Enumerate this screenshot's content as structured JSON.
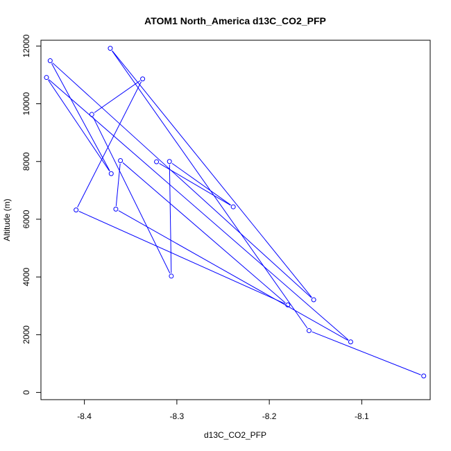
{
  "chart_data": {
    "type": "line",
    "title": "ATOM1 North_America d13C_CO2_PFP",
    "xlabel": "d13C_CO2_PFP",
    "ylabel": "Altitude (m)",
    "xlim": [
      -8.447,
      -8.026
    ],
    "ylim": [
      -250,
      12200
    ],
    "xticks": [
      -8.4,
      -8.3,
      -8.2,
      -8.1
    ],
    "xtick_labels": [
      "-8.4",
      "-8.3",
      "-8.2",
      "-8.1"
    ],
    "yticks": [
      0,
      2000,
      4000,
      6000,
      8000,
      10000,
      12000
    ],
    "ytick_labels": [
      "0",
      "2000",
      "4000",
      "6000",
      "8000",
      "10000",
      "12000"
    ],
    "grid": false,
    "series": [
      {
        "color": "#0000ff",
        "marker": "open-circle",
        "points": [
          {
            "x": -8.033,
            "y": 570
          },
          {
            "x": -8.157,
            "y": 2140
          },
          {
            "x": -8.372,
            "y": 11920
          },
          {
            "x": -8.152,
            "y": 3210
          },
          {
            "x": -8.437,
            "y": 11490
          },
          {
            "x": -8.371,
            "y": 7580
          },
          {
            "x": -8.441,
            "y": 10910
          },
          {
            "x": -8.112,
            "y": 1750
          },
          {
            "x": -8.366,
            "y": 6350
          },
          {
            "x": -8.361,
            "y": 8030
          },
          {
            "x": -8.18,
            "y": 3030
          },
          {
            "x": -8.409,
            "y": 6320
          },
          {
            "x": -8.337,
            "y": 10860
          },
          {
            "x": -8.392,
            "y": 9630
          },
          {
            "x": -8.306,
            "y": 4030
          },
          {
            "x": -8.308,
            "y": 8000
          },
          {
            "x": -8.239,
            "y": 6430
          },
          {
            "x": -8.322,
            "y": 7990
          }
        ]
      }
    ]
  }
}
